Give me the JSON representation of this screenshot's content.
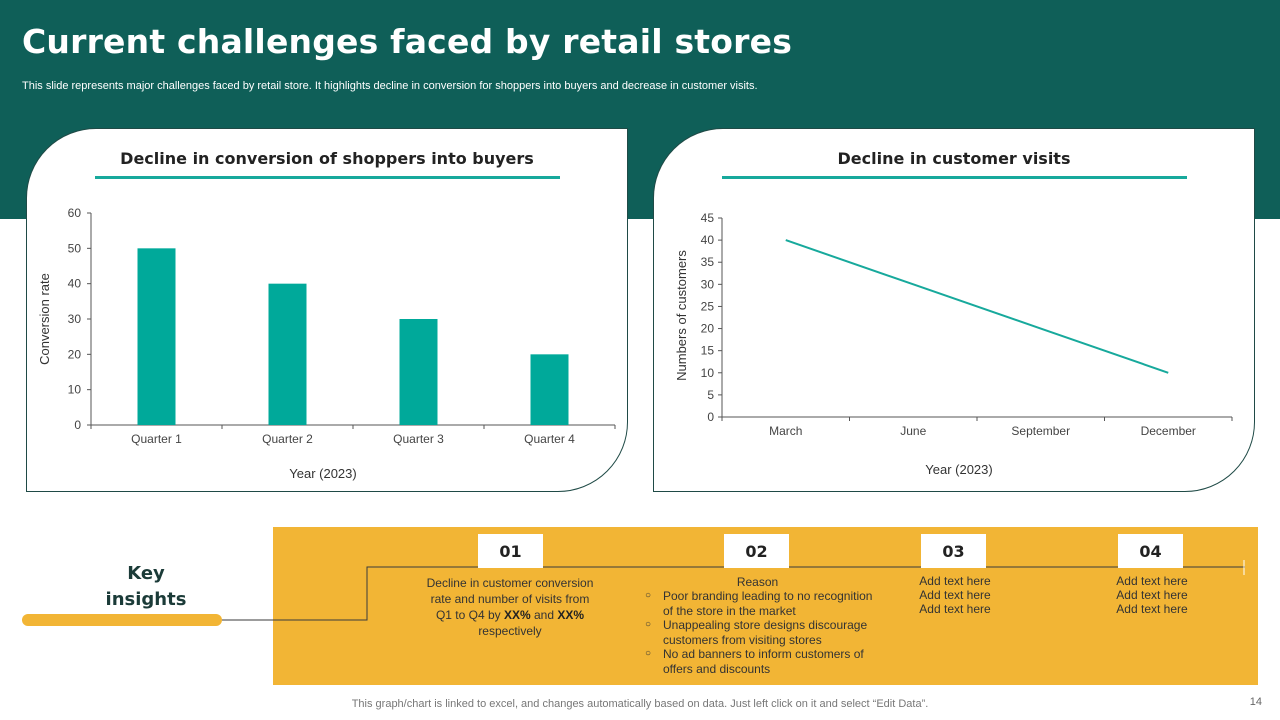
{
  "slide": {
    "title": "Current challenges faced by retail stores",
    "subtitle": "This slide represents major challenges faced by retail store. It highlights decline in conversion for shoppers into buyers and decrease in customer visits.",
    "footer": "This graph/chart is linked to excel,  and changes automatically based on data. Just left click on it and select “Edit Data”.",
    "page_number": "14"
  },
  "colors": {
    "band": "#0f5f58",
    "accent": "#17a99c",
    "bar": "#00a99a",
    "insight_bg": "#f2b535"
  },
  "chart_data": [
    {
      "type": "bar",
      "title": "Decline in conversion of shoppers into buyers",
      "categories": [
        "Quarter 1",
        "Quarter 2",
        "Quarter 3",
        "Quarter 4"
      ],
      "values": [
        50,
        40,
        30,
        20
      ],
      "xlabel": "Year (2023)",
      "ylabel": "Conversion  rate",
      "ylim": [
        0,
        60
      ],
      "yticks": [
        0,
        10,
        20,
        30,
        40,
        50,
        60
      ],
      "grid": false,
      "legend": "none"
    },
    {
      "type": "line",
      "title": "Decline in customer visits",
      "categories": [
        "March",
        "June",
        "September",
        "December"
      ],
      "values": [
        40,
        30,
        20,
        10
      ],
      "xlabel": "Year (2023)",
      "ylabel": "Numbers  of  customers",
      "ylim": [
        0,
        45
      ],
      "yticks": [
        0,
        5,
        10,
        15,
        20,
        25,
        30,
        35,
        40,
        45
      ],
      "grid": false,
      "legend": "none"
    }
  ],
  "insights": {
    "label_line1": "Key",
    "label_line2": "insights",
    "items": [
      {
        "number": "01",
        "text_before": "Decline in customer conversion  rate and number of visits from  Q1 to Q4  by",
        "bold1": "XX%",
        "text_and": " and ",
        "bold2": "XX%",
        "text_after": " respectively"
      },
      {
        "number": "02",
        "heading": "Reason",
        "bullets": [
          "Poor branding leading to no recognition of the store in the market",
          "Unappealing store designs discourage customers from visiting stores",
          "No ad banners to inform customers of offers and discounts"
        ]
      },
      {
        "number": "03",
        "lines": [
          "Add text here",
          "Add text here",
          "Add text here"
        ]
      },
      {
        "number": "04",
        "lines": [
          "Add text here",
          "Add text here",
          "Add text here"
        ]
      }
    ]
  }
}
